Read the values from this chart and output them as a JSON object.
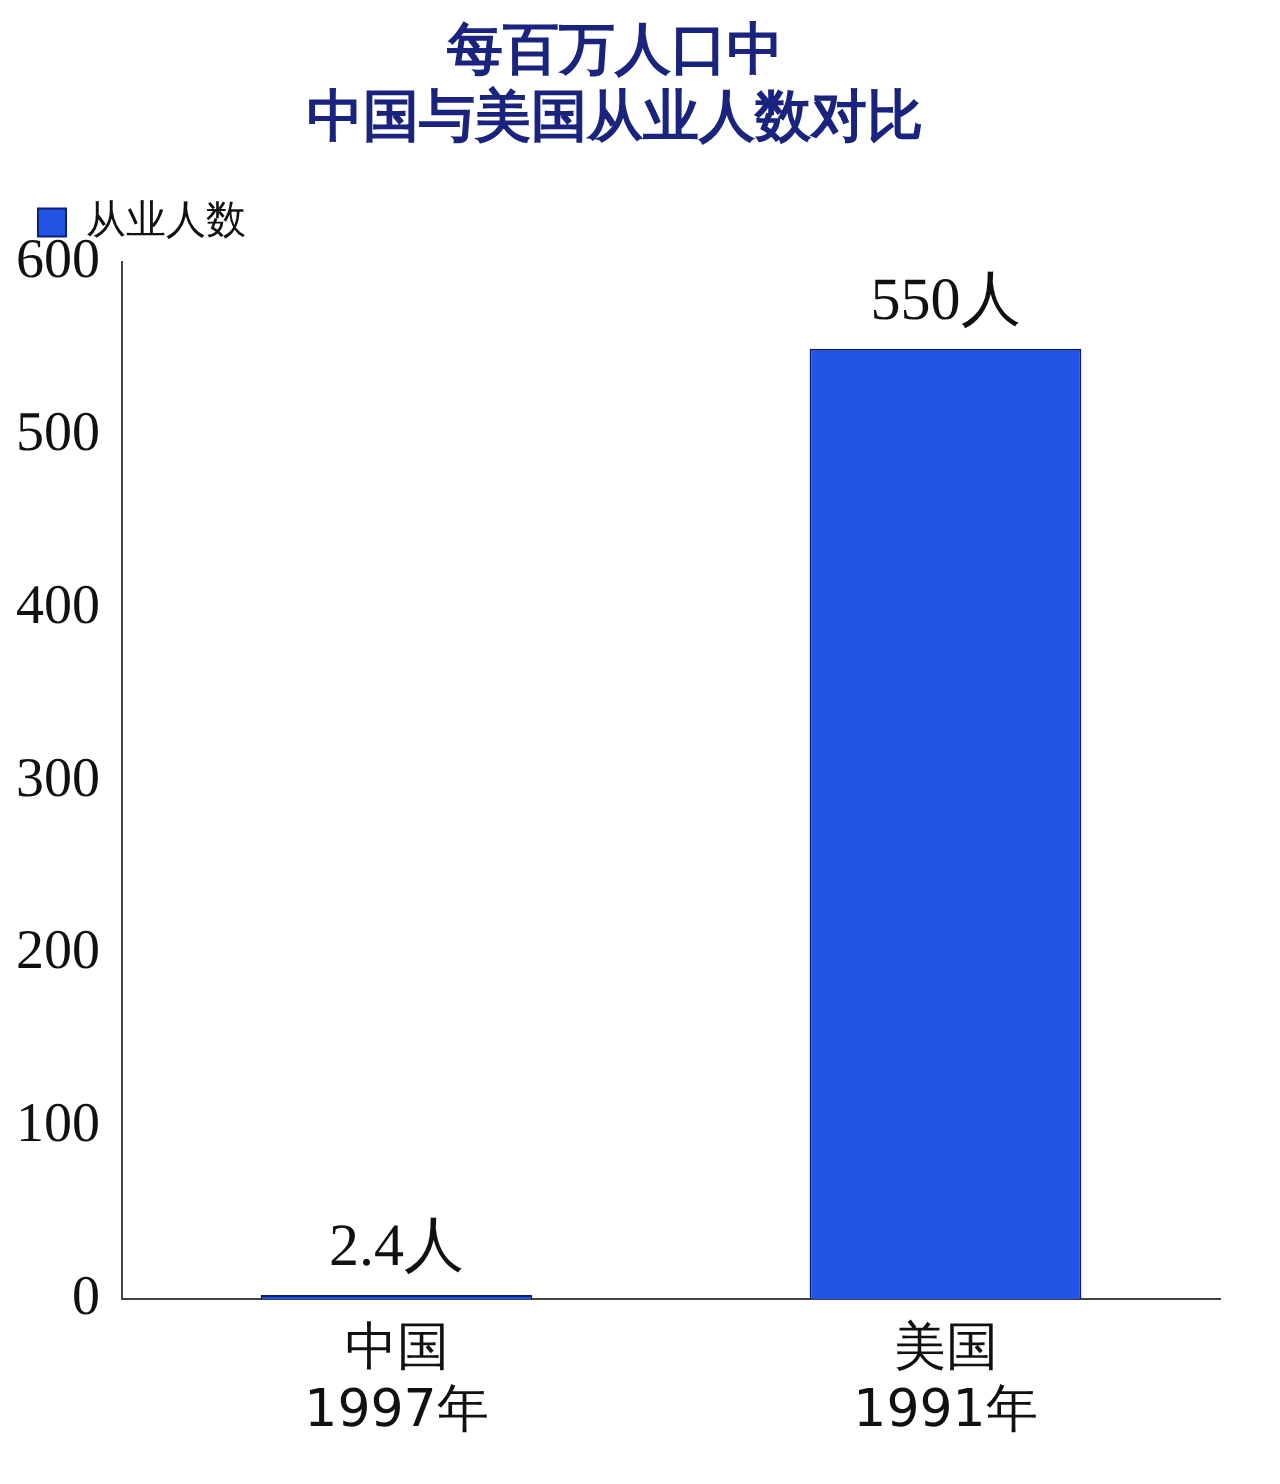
{
  "chart_data": {
    "type": "bar",
    "title": "每百万人口中中国与美国从业人数对比",
    "categories": [
      "中国\n1997年",
      "美国\n1991年"
    ],
    "series": [
      {
        "name": "从业人数",
        "color": "#2255e6",
        "values": [
          2.4,
          550
        ],
        "value_labels": [
          "2.4人",
          "550人"
        ]
      }
    ],
    "ylim": [
      0,
      600
    ],
    "yticks": [
      0,
      100,
      200,
      300,
      400,
      500,
      600
    ],
    "grid": false,
    "legend": "top left"
  }
}
